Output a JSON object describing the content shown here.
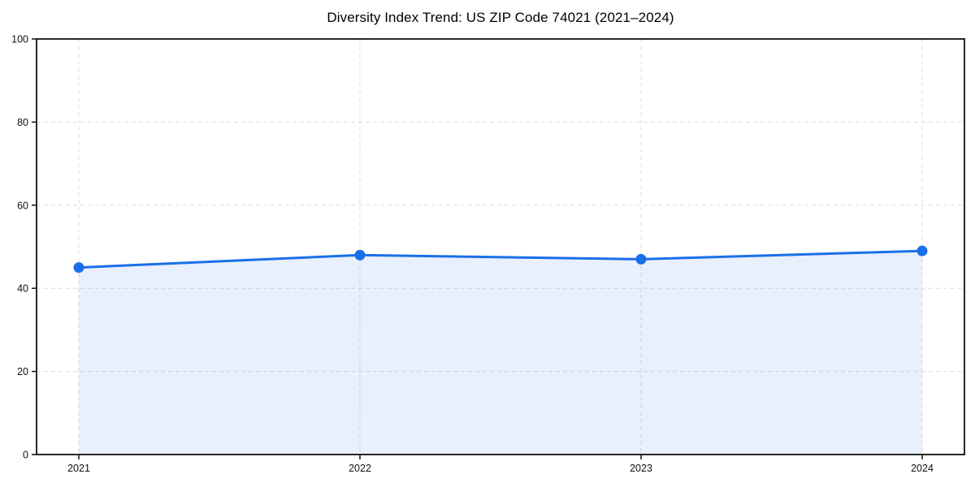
{
  "chart_data": {
    "type": "area",
    "title": "Diversity Index Trend: US ZIP Code 74021 (2021–2024)",
    "categories": [
      "2021",
      "2022",
      "2023",
      "2024"
    ],
    "values": [
      45,
      48,
      47,
      49
    ],
    "xlabel": "",
    "ylabel": "",
    "ylim": [
      0,
      100
    ],
    "yticks": [
      0,
      20,
      40,
      60,
      80,
      100
    ],
    "grid": true,
    "grid_style": "dashed",
    "legend": false,
    "colors": {
      "line": "#1a6fe8",
      "marker": "#1a6fe8",
      "fill": "rgba(26, 111, 232, 0.10)",
      "grid": "#dcdcdc",
      "axis": "#111111",
      "text": "#111111",
      "background": "#ffffff"
    }
  }
}
